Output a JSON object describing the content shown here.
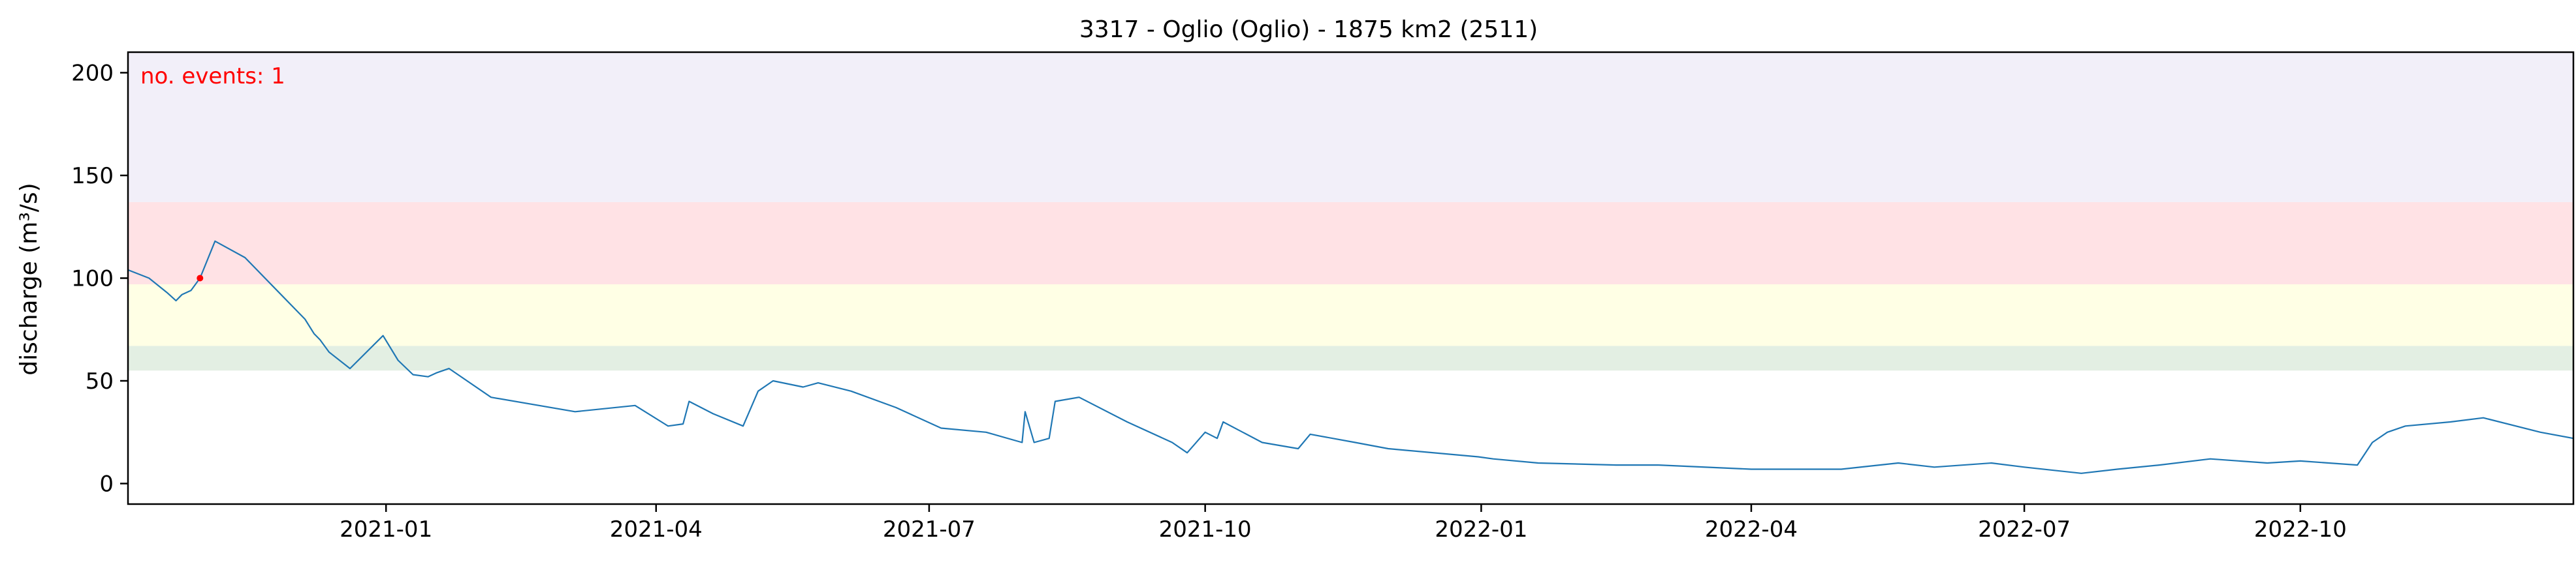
{
  "chart_data": {
    "type": "line",
    "title": "3317 - Oglio (Oglio) - 1875 km2 (2511)",
    "xlabel": "",
    "ylabel": "discharge (m³/s)",
    "annotation": "no. events: 1",
    "xlim": [
      "2020-10-07",
      "2022-12-31"
    ],
    "ylim": [
      -10,
      210
    ],
    "x_ticks": [
      "2021-01",
      "2021-04",
      "2021-07",
      "2021-10",
      "2022-01",
      "2022-04",
      "2022-07",
      "2022-10"
    ],
    "y_ticks": [
      0,
      50,
      100,
      150,
      200
    ],
    "grid": false,
    "threshold_bands": [
      {
        "from": 55,
        "to": 67,
        "color": "#e3efe3"
      },
      {
        "from": 67,
        "to": 97,
        "color": "#ffffe5"
      },
      {
        "from": 97,
        "to": 137,
        "color": "#ffe2e5"
      },
      {
        "from": 137,
        "to": 210,
        "color": "#f2eff9"
      }
    ],
    "series": [
      {
        "color": "#1f77b4",
        "x": [
          "2020-10-07",
          "2020-10-14",
          "2020-10-20",
          "2020-10-23",
          "2020-10-25",
          "2020-10-28",
          "2020-10-31",
          "2020-11-05",
          "2020-11-15",
          "2020-11-25",
          "2020-12-05",
          "2020-12-08",
          "2020-12-10",
          "2020-12-13",
          "2020-12-20",
          "2020-12-31",
          "2021-01-05",
          "2021-01-10",
          "2021-01-15",
          "2021-01-18",
          "2021-01-22",
          "2021-02-05",
          "2021-03-05",
          "2021-03-25",
          "2021-04-05",
          "2021-04-10",
          "2021-04-12",
          "2021-04-20",
          "2021-04-30",
          "2021-05-05",
          "2021-05-10",
          "2021-05-20",
          "2021-05-25",
          "2021-06-05",
          "2021-06-20",
          "2021-07-05",
          "2021-07-20",
          "2021-08-01",
          "2021-08-02",
          "2021-08-05",
          "2021-08-10",
          "2021-08-12",
          "2021-08-20",
          "2021-09-05",
          "2021-09-20",
          "2021-09-25",
          "2021-10-01",
          "2021-10-05",
          "2021-10-07",
          "2021-10-20",
          "2021-11-01",
          "2021-11-05",
          "2021-11-20",
          "2021-12-01",
          "2021-12-31",
          "2022-01-05",
          "2022-01-20",
          "2022-02-15",
          "2022-03-01",
          "2022-04-01",
          "2022-05-01",
          "2022-05-20",
          "2022-06-01",
          "2022-06-20",
          "2022-07-01",
          "2022-07-20",
          "2022-08-01",
          "2022-08-15",
          "2022-09-01",
          "2022-09-20",
          "2022-10-01",
          "2022-10-20",
          "2022-10-25",
          "2022-10-30",
          "2022-11-05",
          "2022-11-20",
          "2022-12-01",
          "2022-12-20",
          "2022-12-31"
        ],
        "y": [
          104,
          100,
          93,
          89,
          92,
          94,
          100,
          118,
          110,
          95,
          80,
          73,
          70,
          64,
          56,
          72,
          60,
          53,
          52,
          54,
          56,
          42,
          35,
          38,
          28,
          29,
          40,
          34,
          28,
          45,
          50,
          47,
          49,
          45,
          37,
          27,
          25,
          20,
          35,
          20,
          22,
          40,
          42,
          30,
          20,
          15,
          25,
          22,
          30,
          20,
          17,
          24,
          20,
          17,
          13,
          12,
          10,
          9,
          9,
          7,
          7,
          10,
          8,
          10,
          8,
          5,
          7,
          9,
          12,
          10,
          11,
          9,
          20,
          25,
          28,
          30,
          32,
          25,
          22
        ]
      }
    ],
    "events": [
      {
        "x": "2020-10-31",
        "y": 100,
        "color": "#ff0000"
      }
    ]
  }
}
